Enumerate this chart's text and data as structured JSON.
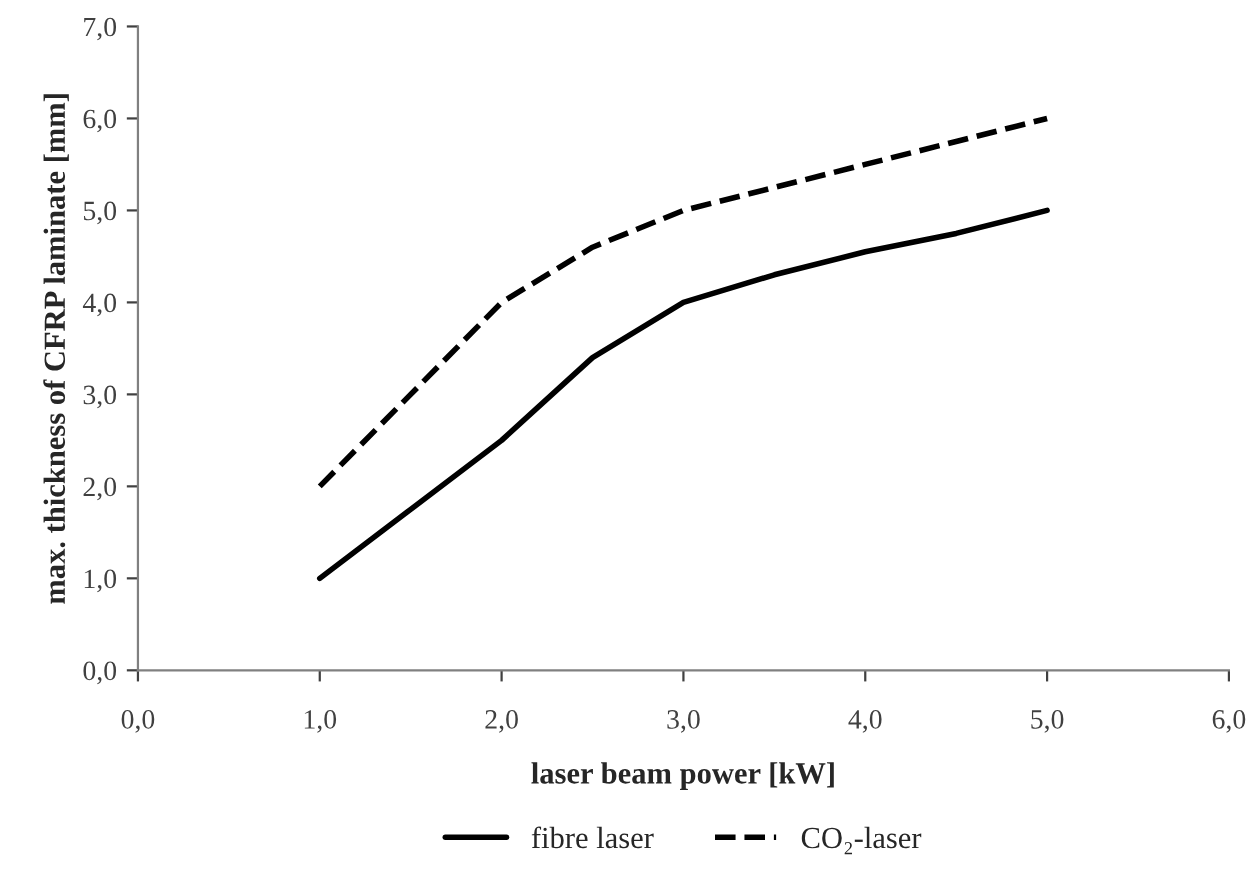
{
  "chart_data": {
    "type": "line",
    "xlabel": "laser beam power [kW]",
    "ylabel": "max. thickness of CFRP laminate [mm]",
    "x": [
      1,
      1.5,
      2,
      2.5,
      3,
      3.5,
      4,
      4.5,
      5
    ],
    "series": [
      {
        "name": "fibre laser",
        "color": "#000000",
        "line_style": "solid",
        "values": [
          1,
          1.75,
          2.5,
          3.4,
          4,
          4.3,
          4.55,
          4.75,
          5
        ]
      },
      {
        "name": "CO₂-laser",
        "color": "#000000",
        "line_style": "dashed",
        "values": [
          2,
          3,
          4,
          4.6,
          5,
          5.25,
          5.5,
          5.75,
          6
        ]
      }
    ],
    "xlim": [
      0,
      6
    ],
    "ylim": [
      0,
      7
    ],
    "xticks": [
      {
        "value": 0,
        "label": "0,0"
      },
      {
        "value": 1,
        "label": "1,0"
      },
      {
        "value": 2,
        "label": "2,0"
      },
      {
        "value": 3,
        "label": "3,0"
      },
      {
        "value": 4,
        "label": "4,0"
      },
      {
        "value": 5,
        "label": "5,0"
      },
      {
        "value": 6,
        "label": "6,0"
      }
    ],
    "yticks": [
      {
        "value": 0,
        "label": "0,0"
      },
      {
        "value": 1,
        "label": "1,0"
      },
      {
        "value": 2,
        "label": "2,0"
      },
      {
        "value": 3,
        "label": "3,0"
      },
      {
        "value": 4,
        "label": "4,0"
      },
      {
        "value": 5,
        "label": "5,0"
      },
      {
        "value": 6,
        "label": "6,0"
      },
      {
        "value": 7,
        "label": "7,0"
      }
    ],
    "grid": false,
    "legend": "bottom",
    "marker": "none"
  }
}
